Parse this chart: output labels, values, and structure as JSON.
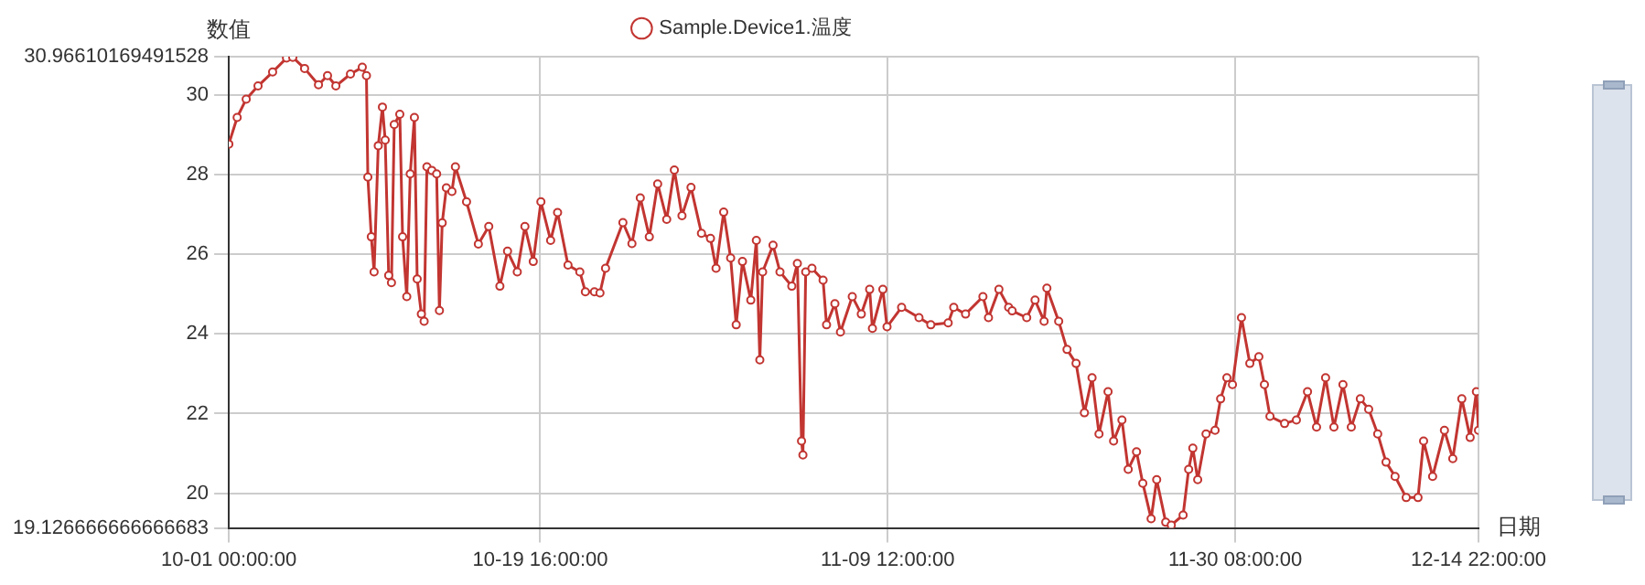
{
  "chart_data": {
    "type": "line",
    "xlabel": "日期",
    "ylabel": "数值",
    "legend": "top",
    "grid": true,
    "marker": "circle",
    "xlim": [
      "--10-01T00:00",
      "--12-14T22:00"
    ],
    "xticks": [
      {
        "value": "--10-01T00:00",
        "label": "10-01 00:00:00"
      },
      {
        "value": "--10-19T16:00",
        "label": "10-19 16:00:00"
      },
      {
        "value": "--11-09T12:00",
        "label": "11-09 12:00:00"
      },
      {
        "value": "--11-30T08:00",
        "label": "11-30 08:00:00"
      },
      {
        "value": "--12-14T22:00",
        "label": "12-14 22:00:00"
      }
    ],
    "ylim": [
      19.126666666666683,
      30.96610169491528
    ],
    "yticks": [
      19.126666666666683,
      20,
      22,
      24,
      26,
      28,
      30,
      30.96610169491528
    ],
    "x": [
      "--10-01T00:00",
      "--10-01T12:00",
      "--10-02T01:00",
      "--10-02T18:00",
      "--10-03T15:00",
      "--10-04T11:00",
      "--10-04T20:00",
      "--10-05T13:00",
      "--10-06T09:00",
      "--10-06T22:00",
      "--10-07T10:00",
      "--10-08T07:00",
      "--10-09T00:00",
      "--10-09T06:00",
      "--10-09T08:00",
      "--10-09T13:00",
      "--10-09T17:00",
      "--10-09T23:00",
      "--10-10T05:00",
      "--10-10T09:00",
      "--10-10T14:00",
      "--10-10T18:00",
      "--10-10T22:00",
      "--10-11T06:00",
      "--10-11T10:00",
      "--10-11T16:00",
      "--10-11T21:00",
      "--10-12T03:00",
      "--10-12T07:00",
      "--10-12T13:00",
      "--10-12T17:00",
      "--10-12T21:00",
      "--10-13T04:00",
      "--10-13T11:00",
      "--10-13T15:00",
      "--10-13T19:00",
      "--10-14T01:00",
      "--10-14T09:00",
      "--10-14T14:00",
      "--10-15T06:00",
      "--10-15T23:00",
      "--10-16T14:00",
      "--10-17T06:00",
      "--10-17T17:00",
      "--10-18T07:00",
      "--10-18T18:00",
      "--10-19T06:00",
      "--10-19T17:00",
      "--10-20T07:00",
      "--10-20T17:00",
      "--10-21T08:00",
      "--10-22T01:00",
      "--10-22T09:00",
      "--10-22T22:00",
      "--10-23T06:00",
      "--10-23T14:00",
      "--10-24T15:00",
      "--10-25T04:00",
      "--10-25T16:00",
      "--10-26T05:00",
      "--10-26T17:00",
      "--10-27T06:00",
      "--10-27T17:00",
      "--10-28T04:00",
      "--10-28T17:00",
      "--10-29T08:00",
      "--10-29T21:00",
      "--10-30T05:00",
      "--10-30T16:00",
      "--10-31T02:00",
      "--10-31T10:00",
      "--10-31T19:00",
      "--11-01T07:00",
      "--11-01T15:00",
      "--11-01T20:00",
      "--11-02T00:00",
      "--11-02T15:00",
      "--11-03T01:00",
      "--11-03T18:00",
      "--11-04T02:00",
      "--11-04T08:00",
      "--11-04T10:00",
      "--11-04T14:00",
      "--11-04T23:00",
      "--11-05T15:00",
      "--11-05T20:00",
      "--11-06T08:00",
      "--11-06T16:00",
      "--11-07T09:00",
      "--11-07T22:00",
      "--11-08T10:00",
      "--11-08T14:00",
      "--11-09T05:00",
      "--11-09T11:00",
      "--11-10T08:00",
      "--11-11T09:00",
      "--11-12T02:00",
      "--11-13T03:00",
      "--11-13T11:00",
      "--11-14T04:00",
      "--11-15T05:00",
      "--11-15T13:00",
      "--11-16T04:00",
      "--11-16T18:00",
      "--11-16T23:00",
      "--11-17T20:00",
      "--11-18T08:00",
      "--11-18T21:00",
      "--11-19T01:00",
      "--11-19T18:00",
      "--11-20T06:00",
      "--11-20T19:00",
      "--11-21T07:00",
      "--11-21T18:00",
      "--11-22T04:00",
      "--11-22T17:00",
      "--11-23T01:00",
      "--11-23T13:00",
      "--11-23T22:00",
      "--11-24T10:00",
      "--11-24T19:00",
      "--11-25T07:00",
      "--11-25T15:00",
      "--11-26T04:00",
      "--11-26T12:00",
      "--11-27T05:00",
      "--11-27T13:00",
      "--11-27T19:00",
      "--11-28T02:00",
      "--11-28T14:00",
      "--11-29T03:00",
      "--11-29T11:00",
      "--11-29T20:00",
      "--11-30T04:00",
      "--11-30T17:00",
      "--12-01T05:00",
      "--12-01T18:00",
      "--12-02T02:00",
      "--12-02T10:00",
      "--12-03T07:00",
      "--12-04T00:00",
      "--12-04T16:00",
      "--12-05T05:00",
      "--12-05T18:00",
      "--12-06T06:00",
      "--12-06T19:00",
      "--12-07T07:00",
      "--12-07T20:00",
      "--12-08T08:00",
      "--12-08T21:00",
      "--12-09T09:00",
      "--12-09T22:00",
      "--12-10T14:00",
      "--12-11T07:00",
      "--12-11T15:00",
      "--12-12T04:00",
      "--12-12T21:00",
      "--12-13T09:00",
      "--12-13T22:00",
      "--12-14T10:00",
      "--12-14T19:00",
      "--12-14T22:00"
    ],
    "series": [
      {
        "name": "Sample.Device1.温度",
        "color": "#c23531",
        "values": [
          28.77,
          29.44,
          29.9,
          30.23,
          30.58,
          30.93,
          30.95,
          30.67,
          30.26,
          30.49,
          30.23,
          30.53,
          30.7,
          30.49,
          27.94,
          26.44,
          25.56,
          28.73,
          29.7,
          28.87,
          25.47,
          25.29,
          29.26,
          29.52,
          26.44,
          24.94,
          28.02,
          29.44,
          25.38,
          24.5,
          24.32,
          28.2,
          28.11,
          28.02,
          24.59,
          26.79,
          27.67,
          27.58,
          28.2,
          27.32,
          26.26,
          26.7,
          25.2,
          26.08,
          25.56,
          26.7,
          25.82,
          27.32,
          26.35,
          27.05,
          25.73,
          25.56,
          25.06,
          25.06,
          25.03,
          25.65,
          26.8,
          26.27,
          27.42,
          26.44,
          27.77,
          26.88,
          28.12,
          26.97,
          27.68,
          26.53,
          26.4,
          25.65,
          27.06,
          25.91,
          24.23,
          25.82,
          24.85,
          26.35,
          23.35,
          25.56,
          26.23,
          25.56,
          25.2,
          25.77,
          21.31,
          20.96,
          25.56,
          25.65,
          25.35,
          24.23,
          24.76,
          24.05,
          24.94,
          24.5,
          25.12,
          24.14,
          25.12,
          24.18,
          24.67,
          24.41,
          24.23,
          24.28,
          24.67,
          24.5,
          24.94,
          24.41,
          25.12,
          24.67,
          24.58,
          24.41,
          24.85,
          24.32,
          25.15,
          24.32,
          23.61,
          23.26,
          22.02,
          22.9,
          21.49,
          22.55,
          21.31,
          21.84,
          20.6,
          21.04,
          20.25,
          19.36,
          20.34,
          19.27,
          19.2,
          19.45,
          20.6,
          21.13,
          20.34,
          21.49,
          21.58,
          22.37,
          22.9,
          22.73,
          24.41,
          23.26,
          23.43,
          22.73,
          21.93,
          21.75,
          21.84,
          22.55,
          21.66,
          22.9,
          21.66,
          22.73,
          21.66,
          22.37,
          22.11,
          21.49,
          20.78,
          20.42,
          19.89,
          19.89,
          21.31,
          20.42,
          21.58,
          20.87,
          22.37,
          21.4,
          22.55,
          21.58
        ]
      }
    ]
  }
}
